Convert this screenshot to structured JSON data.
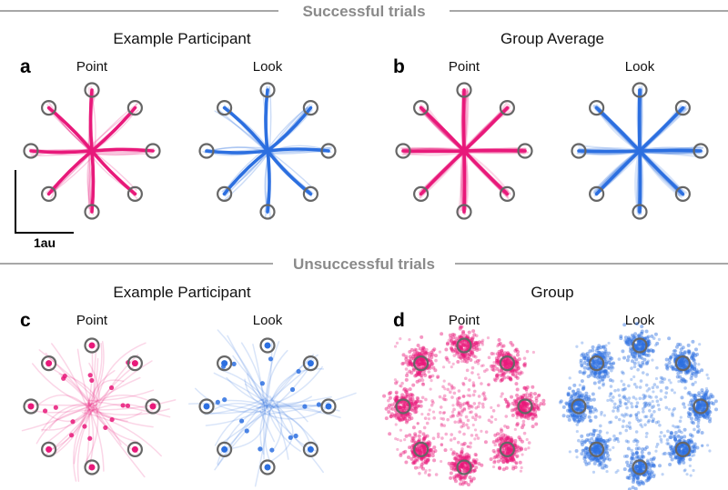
{
  "sections": {
    "successful": {
      "label": "Successful trials"
    },
    "unsuccessful": {
      "label": "Unsuccessful trials"
    }
  },
  "headers": {
    "example_top": "Example Participant",
    "group_avg": "Group Average",
    "example_bottom": "Example Participant",
    "group": "Group"
  },
  "panels": {
    "a": {
      "letter": "a",
      "point": "Point",
      "look": "Look"
    },
    "b": {
      "letter": "b",
      "point": "Point",
      "look": "Look"
    },
    "c": {
      "letter": "c",
      "point": "Point",
      "look": "Look"
    },
    "d": {
      "letter": "d",
      "point": "Point",
      "look": "Look"
    }
  },
  "scale_bar": {
    "label": "1au"
  },
  "colors": {
    "point": "#e8197a",
    "look": "#2c6fe0",
    "target_ring": "#666666",
    "divider": "#8a8a8a"
  }
}
